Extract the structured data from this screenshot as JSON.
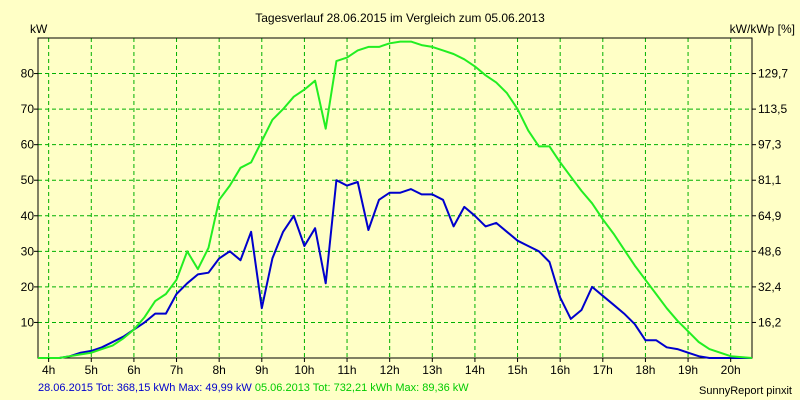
{
  "colors": {
    "background": "#ffffc6",
    "grid": "#00b000",
    "series_2015": "#0000cc",
    "series_2013": "#22ee22"
  },
  "footer": {
    "series_2015_summary": "28.06.2015 Tot: 368,15 kWh Max: 49,99 kW",
    "series_2013_summary": "05.06.2013 Tot: 732,21 kWh Max: 89,36 kW",
    "credit": "SunnyReport pinxit"
  },
  "chart_data": {
    "type": "line",
    "title": "Tagesverlauf 28.06.2015 im Vergleich zum 05.06.2013",
    "ylabel": "kW",
    "ylabel_right": "kW/kWp [%]",
    "xlim": [
      3.75,
      20.5
    ],
    "ylim": [
      0,
      90
    ],
    "x_ticks": [
      4,
      5,
      6,
      7,
      8,
      9,
      10,
      11,
      12,
      13,
      14,
      15,
      16,
      17,
      18,
      19,
      20
    ],
    "x_tick_labels": [
      "4h",
      "5h",
      "6h",
      "7h",
      "8h",
      "9h",
      "10h",
      "11h",
      "12h",
      "13h",
      "14h",
      "15h",
      "16h",
      "17h",
      "18h",
      "19h",
      "20h"
    ],
    "y_ticks": [
      10,
      20,
      30,
      40,
      50,
      60,
      70,
      80
    ],
    "y_tick_labels": [
      "10",
      "20",
      "30",
      "40",
      "50",
      "60",
      "70",
      "80"
    ],
    "y2_ticks": [
      16.2,
      32.4,
      48.6,
      64.9,
      81.1,
      97.3,
      113.5,
      129.7
    ],
    "y2_tick_labels": [
      "16,2",
      "32,4",
      "48,6",
      "64,9",
      "81,1",
      "97,3",
      "113,5",
      "129,7"
    ],
    "grid": true,
    "series": [
      {
        "name": "28.06.2015",
        "color": "#0000cc",
        "x": [
          3.75,
          4.25,
          4.5,
          4.75,
          5.0,
          5.25,
          5.5,
          5.75,
          6.0,
          6.25,
          6.5,
          6.75,
          7.0,
          7.25,
          7.5,
          7.75,
          8.0,
          8.25,
          8.5,
          8.75,
          9.0,
          9.25,
          9.5,
          9.75,
          10.0,
          10.25,
          10.5,
          10.75,
          11.0,
          11.25,
          11.5,
          11.75,
          12.0,
          12.25,
          12.5,
          12.75,
          13.0,
          13.25,
          13.5,
          13.75,
          14.0,
          14.25,
          14.5,
          14.75,
          15.0,
          15.25,
          15.5,
          15.75,
          16.0,
          16.25,
          16.5,
          16.75,
          17.0,
          17.25,
          17.5,
          17.75,
          18.0,
          18.25,
          18.5,
          18.75,
          19.0,
          19.25,
          19.5,
          20.0,
          20.5
        ],
        "y": [
          0,
          0,
          0.5,
          1.5,
          2.0,
          3.0,
          4.5,
          6.0,
          8.0,
          10.0,
          12.5,
          12.5,
          18.0,
          21.0,
          23.5,
          24.0,
          28.0,
          30.0,
          27.5,
          35.5,
          14.0,
          28.0,
          35.5,
          40.0,
          31.5,
          36.5,
          21.0,
          50.0,
          48.5,
          49.5,
          36.0,
          44.5,
          46.5,
          46.5,
          47.5,
          46.0,
          46.0,
          44.5,
          37.0,
          42.5,
          40.0,
          37.0,
          38.0,
          35.5,
          33.0,
          31.5,
          30.0,
          27.0,
          17.0,
          11.0,
          13.5,
          20.0,
          17.5,
          15.0,
          12.5,
          9.5,
          5.0,
          5.0,
          3.0,
          2.5,
          1.5,
          0.5,
          0,
          0,
          0
        ]
      },
      {
        "name": "05.06.2013",
        "color": "#22ee22",
        "x": [
          3.75,
          4.25,
          4.5,
          4.75,
          5.0,
          5.25,
          5.5,
          5.75,
          6.0,
          6.25,
          6.5,
          6.75,
          7.0,
          7.25,
          7.5,
          7.75,
          8.0,
          8.25,
          8.5,
          8.75,
          9.0,
          9.25,
          9.5,
          9.75,
          10.0,
          10.25,
          10.5,
          10.75,
          11.0,
          11.25,
          11.5,
          11.75,
          12.0,
          12.25,
          12.5,
          12.75,
          13.0,
          13.25,
          13.5,
          13.75,
          14.0,
          14.25,
          14.5,
          14.75,
          15.0,
          15.25,
          15.5,
          15.75,
          16.0,
          16.25,
          16.5,
          16.75,
          17.0,
          17.25,
          17.5,
          17.75,
          18.0,
          18.25,
          18.5,
          18.75,
          19.0,
          19.25,
          19.5,
          20.0,
          20.5
        ],
        "y": [
          0,
          0,
          0.5,
          1.0,
          1.5,
          2.5,
          3.5,
          5.5,
          8.0,
          11.5,
          16.0,
          18.0,
          22.0,
          30.0,
          25.0,
          31.0,
          44.5,
          48.5,
          53.5,
          55.0,
          61.0,
          67.0,
          70.0,
          73.5,
          75.5,
          78.0,
          64.5,
          83.5,
          84.5,
          86.5,
          87.5,
          87.5,
          88.5,
          89.0,
          89.0,
          88.0,
          87.5,
          86.5,
          85.5,
          84.0,
          82.0,
          79.5,
          77.5,
          74.5,
          70.0,
          64.0,
          59.5,
          59.5,
          55.0,
          51.0,
          47.0,
          43.5,
          39.0,
          35.0,
          30.5,
          26.0,
          22.0,
          18.0,
          14.0,
          10.5,
          7.5,
          4.5,
          2.5,
          0.5,
          0
        ]
      }
    ]
  }
}
